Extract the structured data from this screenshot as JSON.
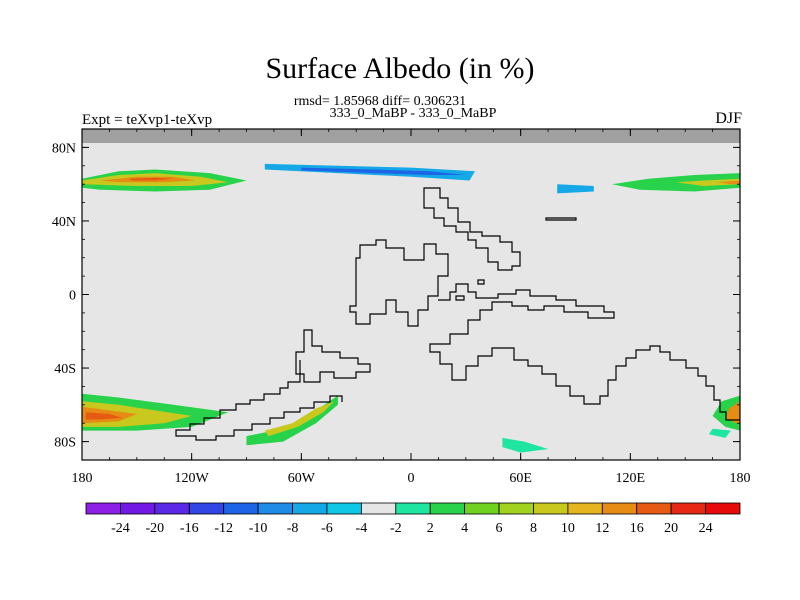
{
  "header": {
    "title": "Surface Albedo (in %)",
    "stats": "rmsd= 1.85968 diff= 0.306231",
    "period": "333_0_MaBP - 333_0_MaBP",
    "experiment": "Expt = teXvp1-teXvp",
    "season": "DJF"
  },
  "colors": {
    "background_field": "#e6e6e6",
    "missing_band": "#a0a0a0",
    "coastline": "#000000"
  },
  "chart_data": {
    "type": "heatmap",
    "title": "Surface Albedo (in %)",
    "xlabel": "",
    "ylabel": "",
    "x_range": [
      -180,
      180
    ],
    "y_range": [
      -90,
      90
    ],
    "x_ticks": [
      {
        "value": -180,
        "label": "180"
      },
      {
        "value": -120,
        "label": "120W"
      },
      {
        "value": -60,
        "label": "60W"
      },
      {
        "value": 0,
        "label": "0"
      },
      {
        "value": 60,
        "label": "60E"
      },
      {
        "value": 120,
        "label": "120E"
      },
      {
        "value": 180,
        "label": "180"
      }
    ],
    "y_ticks": [
      {
        "value": 80,
        "label": "80N"
      },
      {
        "value": 40,
        "label": "40N"
      },
      {
        "value": 0,
        "label": "0"
      },
      {
        "value": -40,
        "label": "40S"
      },
      {
        "value": -80,
        "label": "80S"
      }
    ],
    "colorbar": {
      "colors": [
        "#8d1fe6",
        "#7319e6",
        "#5a28e6",
        "#3246e6",
        "#1e64e6",
        "#1e8ce6",
        "#14a8e6",
        "#0fc8e6",
        "#e6e6e6",
        "#1ee6a0",
        "#28d24b",
        "#6ed21e",
        "#a0d21e",
        "#c8c81e",
        "#e6b41e",
        "#e68c14",
        "#e65a14",
        "#e62814",
        "#e60a0a"
      ],
      "labels": [
        "-24",
        "-20",
        "-16",
        "-12",
        "-10",
        "-8",
        "-6",
        "-4",
        "-2",
        "2",
        "4",
        "6",
        "8",
        "10",
        "12",
        "16",
        "20",
        "24"
      ]
    },
    "anomaly_regions": [
      {
        "name": "north-pacific-band",
        "points": [
          [
            -180,
            63
          ],
          [
            -160,
            67
          ],
          [
            -140,
            68
          ],
          [
            -110,
            66
          ],
          [
            -90,
            62
          ],
          [
            -110,
            57
          ],
          [
            -140,
            56
          ],
          [
            -170,
            57
          ],
          [
            -180,
            58
          ]
        ],
        "fill": "#28d24b"
      },
      {
        "name": "north-pacific-core-1",
        "points": [
          [
            -180,
            62
          ],
          [
            -160,
            65
          ],
          [
            -140,
            66
          ],
          [
            -115,
            64
          ],
          [
            -100,
            61
          ],
          [
            -120,
            59
          ],
          [
            -150,
            59
          ],
          [
            -180,
            60
          ]
        ],
        "fill": "#c8c81e"
      },
      {
        "name": "north-pacific-core-2",
        "points": [
          [
            -170,
            62
          ],
          [
            -150,
            64
          ],
          [
            -130,
            64
          ],
          [
            -118,
            62
          ],
          [
            -135,
            61
          ],
          [
            -160,
            61
          ]
        ],
        "fill": "#e68c14"
      },
      {
        "name": "north-pacific-core-3",
        "points": [
          [
            -155,
            63
          ],
          [
            -140,
            63.5
          ],
          [
            -130,
            63
          ],
          [
            -140,
            62
          ],
          [
            -152,
            62
          ]
        ],
        "fill": "#e65a14"
      },
      {
        "name": "north-east-band",
        "points": [
          [
            180,
            66
          ],
          [
            155,
            65
          ],
          [
            130,
            63
          ],
          [
            110,
            60
          ],
          [
            125,
            57
          ],
          [
            155,
            56
          ],
          [
            180,
            58
          ]
        ],
        "fill": "#28d24b"
      },
      {
        "name": "north-east-core",
        "points": [
          [
            180,
            63
          ],
          [
            160,
            62
          ],
          [
            145,
            61
          ],
          [
            160,
            59
          ],
          [
            180,
            60
          ]
        ],
        "fill": "#c8c81e"
      },
      {
        "name": "north-east-core-2",
        "points": [
          [
            180,
            62
          ],
          [
            168,
            61
          ],
          [
            175,
            60
          ],
          [
            180,
            60
          ]
        ],
        "fill": "#e68c14"
      },
      {
        "name": "north-blue-band",
        "points": [
          [
            -80,
            71
          ],
          [
            -40,
            70
          ],
          [
            0,
            69
          ],
          [
            35,
            67
          ],
          [
            32,
            62
          ],
          [
            0,
            64
          ],
          [
            -40,
            66
          ],
          [
            -80,
            68
          ]
        ],
        "fill": "#14a8e6"
      },
      {
        "name": "north-blue-core",
        "points": [
          [
            -60,
            69
          ],
          [
            -20,
            68
          ],
          [
            10,
            67
          ],
          [
            30,
            65
          ],
          [
            10,
            65
          ],
          [
            -20,
            66
          ],
          [
            -60,
            67.5
          ]
        ],
        "fill": "#1e64e6"
      },
      {
        "name": "north-blue-2",
        "points": [
          [
            80,
            60
          ],
          [
            100,
            59
          ],
          [
            100,
            56
          ],
          [
            80,
            55
          ]
        ],
        "fill": "#14a8e6"
      },
      {
        "name": "south-west-band",
        "points": [
          [
            -180,
            -54
          ],
          [
            -160,
            -56
          ],
          [
            -130,
            -60
          ],
          [
            -100,
            -64
          ],
          [
            -120,
            -72
          ],
          [
            -150,
            -74
          ],
          [
            -180,
            -74
          ]
        ],
        "fill": "#28d24b"
      },
      {
        "name": "south-west-core",
        "points": [
          [
            -180,
            -58
          ],
          [
            -160,
            -60
          ],
          [
            -140,
            -63
          ],
          [
            -120,
            -66
          ],
          [
            -135,
            -70
          ],
          [
            -160,
            -72
          ],
          [
            -180,
            -72
          ]
        ],
        "fill": "#c8c81e"
      },
      {
        "name": "south-west-core-2",
        "points": [
          [
            -180,
            -61
          ],
          [
            -165,
            -63
          ],
          [
            -150,
            -65
          ],
          [
            -160,
            -69
          ],
          [
            -180,
            -70
          ]
        ],
        "fill": "#e68c14"
      },
      {
        "name": "south-west-core-3",
        "points": [
          [
            -178,
            -64
          ],
          [
            -165,
            -65
          ],
          [
            -158,
            -67
          ],
          [
            -170,
            -68
          ],
          [
            -178,
            -68
          ]
        ],
        "fill": "#e65a14"
      },
      {
        "name": "south-america-band",
        "points": [
          [
            -90,
            -77
          ],
          [
            -70,
            -73
          ],
          [
            -55,
            -65
          ],
          [
            -40,
            -55
          ],
          [
            -40,
            -60
          ],
          [
            -52,
            -70
          ],
          [
            -70,
            -80
          ],
          [
            -90,
            -82
          ]
        ],
        "fill": "#28d24b"
      },
      {
        "name": "south-america-core",
        "points": [
          [
            -80,
            -74
          ],
          [
            -65,
            -70
          ],
          [
            -52,
            -62
          ],
          [
            -42,
            -58
          ],
          [
            -48,
            -64
          ],
          [
            -62,
            -72
          ],
          [
            -78,
            -77
          ]
        ],
        "fill": "#c8c81e"
      },
      {
        "name": "south-east-band",
        "points": [
          [
            180,
            -55
          ],
          [
            170,
            -58
          ],
          [
            165,
            -66
          ],
          [
            172,
            -72
          ],
          [
            180,
            -74
          ]
        ],
        "fill": "#28d24b"
      },
      {
        "name": "south-east-core",
        "points": [
          [
            180,
            -58
          ],
          [
            174,
            -62
          ],
          [
            172,
            -67
          ],
          [
            178,
            -70
          ],
          [
            180,
            -70
          ]
        ],
        "fill": "#e68c14"
      },
      {
        "name": "south-east-small",
        "points": [
          [
            165,
            -73
          ],
          [
            175,
            -74
          ],
          [
            172,
            -78
          ],
          [
            163,
            -76
          ]
        ],
        "fill": "#1ee6a0"
      },
      {
        "name": "antarctic-small",
        "points": [
          [
            50,
            -78
          ],
          [
            62,
            -80
          ],
          [
            75,
            -84
          ],
          [
            60,
            -86
          ],
          [
            50,
            -83
          ]
        ],
        "fill": "#1ee6a0"
      }
    ]
  }
}
